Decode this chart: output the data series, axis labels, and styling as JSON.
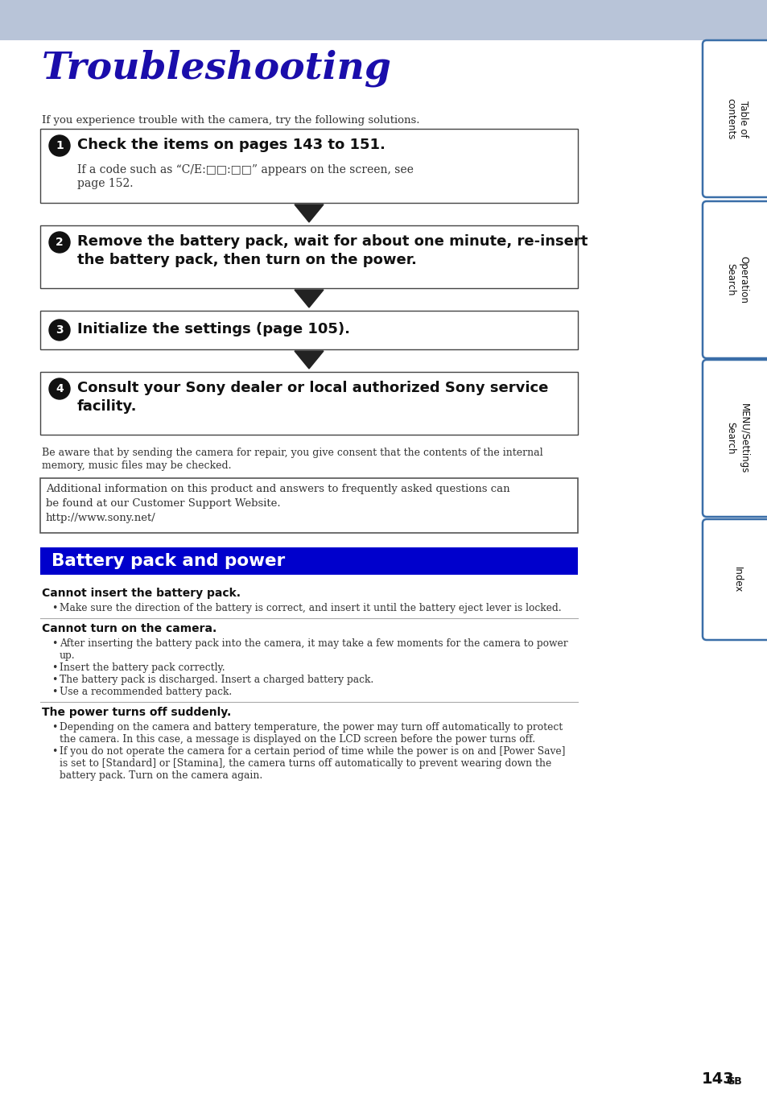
{
  "title": "Troubleshooting",
  "title_color": "#1a0dab",
  "header_bg": "#b8c4d8",
  "page_bg": "#ffffff",
  "intro_text": "If you experience trouble with the camera, try the following solutions.",
  "steps": [
    {
      "num": "1",
      "bold_line1": "Check the items on pages 143 to 151.",
      "bold_line2": "",
      "sub_line1": "If a code such as “C/E:□□:□□” appears on the screen, see",
      "sub_line2": "page 152."
    },
    {
      "num": "2",
      "bold_line1": "Remove the battery pack, wait for about one minute, re-insert",
      "bold_line2": "the battery pack, then turn on the power.",
      "sub_line1": "",
      "sub_line2": ""
    },
    {
      "num": "3",
      "bold_line1": "Initialize the settings (page 105).",
      "bold_line2": "",
      "sub_line1": "",
      "sub_line2": ""
    },
    {
      "num": "4",
      "bold_line1": "Consult your Sony dealer or local authorized Sony service",
      "bold_line2": "facility.",
      "sub_line1": "",
      "sub_line2": ""
    }
  ],
  "notice_line1": "Be aware that by sending the camera for repair, you give consent that the contents of the internal",
  "notice_line2": "memory, music files may be checked.",
  "info_box_line1": "Additional information on this product and answers to frequently asked questions can",
  "info_box_line2": "be found at our Customer Support Website.",
  "info_box_line3": "http://www.sony.net/",
  "section_title": "Battery pack and power",
  "section_bg": "#0000cc",
  "section_text_color": "#ffffff",
  "subsections": [
    {
      "title": "Cannot insert the battery pack.",
      "bullets": [
        "Make sure the direction of the battery is correct, and insert it until the battery eject lever is locked."
      ],
      "has_top_line": false
    },
    {
      "title": "Cannot turn on the camera.",
      "bullets": [
        "After inserting the battery pack into the camera, it may take a few moments for the camera to power",
        "up.",
        "Insert the battery pack correctly.",
        "The battery pack is discharged. Insert a charged battery pack.",
        "Use a recommended battery pack."
      ],
      "bullet_indents": [
        false,
        true,
        false,
        false,
        false
      ],
      "has_top_line": true
    },
    {
      "title": "The power turns off suddenly.",
      "bullets": [
        "Depending on the camera and battery temperature, the power may turn off automatically to protect",
        "the camera. In this case, a message is displayed on the LCD screen before the power turns off.",
        "If you do not operate the camera for a certain period of time while the power is on and [Power Save]",
        "is set to [Standard] or [Stamina], the camera turns off automatically to prevent wearing down the",
        "battery pack. Turn on the camera again."
      ],
      "bullet_indents": [
        false,
        true,
        false,
        true,
        true
      ],
      "has_top_line": true
    }
  ],
  "page_number": "143",
  "page_suffix": "GB",
  "sidebar_labels": [
    "Table of\ncontents",
    "Operation\nSearch",
    "MENU/Settings\nSearch",
    "Index"
  ],
  "sidebar_color": "#ffffff",
  "sidebar_border": "#3a6ea8",
  "arrow_color": "#222222",
  "circle_color": "#111111"
}
